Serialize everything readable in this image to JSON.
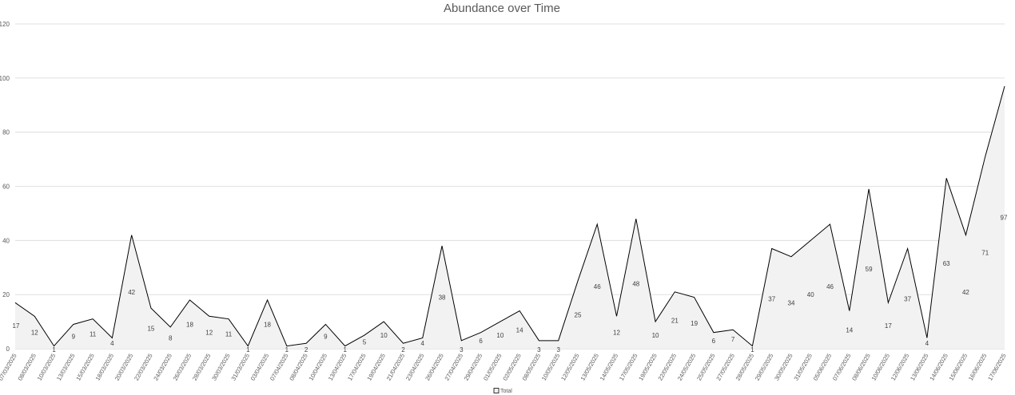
{
  "chart_data": {
    "type": "area",
    "title": "Abundance over Time",
    "xlabel": "",
    "ylabel": "",
    "ylim": [
      0,
      120
    ],
    "yticks": [
      0,
      20,
      40,
      60,
      80,
      100,
      120
    ],
    "grid": true,
    "legend_position": "bottom",
    "colors": {
      "line": "#000000",
      "fill": "#f2f2f2",
      "grid": "#d9d9d9",
      "text": "#595959"
    },
    "categories": [
      "07/03/2025",
      "08/03/2025",
      "10/03/2025",
      "13/03/2025",
      "15/03/2025",
      "18/03/2025",
      "20/03/2025",
      "22/03/2025",
      "24/03/2025",
      "26/03/2025",
      "28/03/2025",
      "30/03/2025",
      "31/03/2025",
      "03/04/2025",
      "07/04/2025",
      "08/04/2025",
      "10/04/2025",
      "13/04/2025",
      "17/04/2025",
      "19/04/2025",
      "21/04/2025",
      "23/04/2025",
      "26/04/2025",
      "27/04/2025",
      "29/04/2025",
      "01/05/2025",
      "02/05/2025",
      "08/05/2025",
      "10/05/2025",
      "12/05/2025",
      "13/05/2025",
      "14/05/2025",
      "17/05/2025",
      "19/05/2025",
      "22/05/2025",
      "24/05/2025",
      "25/05/2025",
      "27/05/2025",
      "28/05/2025",
      "29/05/2025",
      "30/05/2025",
      "31/05/2025",
      "05/06/2025",
      "07/06/2025",
      "08/06/2025",
      "10/06/2025",
      "12/06/2025",
      "13/06/2025",
      "14/06/2025",
      "15/06/2025",
      "16/06/2025",
      "17/06/2025"
    ],
    "series": [
      {
        "name": "Total",
        "values": [
          17,
          12,
          1,
          9,
          11,
          4,
          42,
          15,
          8,
          18,
          12,
          11,
          1,
          18,
          1,
          2,
          9,
          1,
          5,
          10,
          2,
          4,
          38,
          3,
          6,
          10,
          14,
          3,
          3,
          25,
          46,
          12,
          48,
          10,
          21,
          19,
          6,
          7,
          1,
          37,
          34,
          40,
          46,
          14,
          59,
          17,
          37,
          4,
          63,
          42,
          71,
          97
        ]
      }
    ]
  }
}
